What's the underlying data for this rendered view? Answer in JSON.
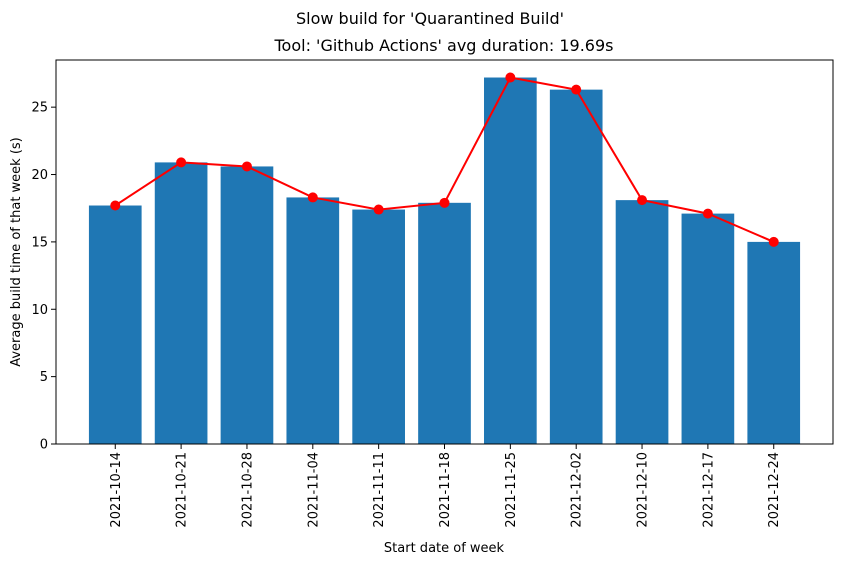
{
  "chart_data": {
    "type": "bar",
    "suptitle": "Slow build for 'Quarantined Build'",
    "title": "Tool: 'Github Actions' avg duration: 19.69s",
    "xlabel": "Start date of week",
    "ylabel": "Average build time of that week (s)",
    "categories": [
      "2021-10-14",
      "2021-10-21",
      "2021-10-28",
      "2021-11-04",
      "2021-11-11",
      "2021-11-18",
      "2021-11-25",
      "2021-12-02",
      "2021-12-10",
      "2021-12-17",
      "2021-12-24"
    ],
    "values": [
      17.7,
      20.9,
      20.6,
      18.3,
      17.4,
      17.9,
      27.2,
      26.3,
      18.1,
      17.1,
      15.0
    ],
    "yticks": [
      0,
      5,
      10,
      15,
      20,
      25
    ],
    "ylim": [
      0,
      28.5
    ],
    "bar_color": "#1f77b4",
    "line_color": "#ff0000",
    "grid": false
  }
}
